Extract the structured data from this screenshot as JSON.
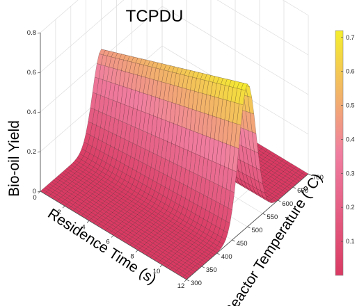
{
  "chart_data": {
    "type": "surface3d",
    "title": "TCPDU",
    "xlabel": "Residence Time (s)",
    "ylabel": "Reactor Temperature (°C)",
    "zlabel": "Bio-oil Yield",
    "x_ticks": [
      "0",
      "2",
      "4",
      "6",
      "8",
      "10",
      "12"
    ],
    "y_ticks": [
      "300",
      "350",
      "400",
      "450",
      "500",
      "550",
      "600",
      "650",
      "700"
    ],
    "z_ticks": [
      "0",
      "0.2",
      "0.4",
      "0.6",
      "0.8"
    ],
    "colorbar_ticks": [
      "0.1",
      "0.2",
      "0.3",
      "0.4",
      "0.5",
      "0.6",
      "0.7"
    ],
    "xlim": [
      0,
      12
    ],
    "ylim": [
      300,
      700
    ],
    "zlim": [
      0,
      0.8
    ],
    "clim": [
      0,
      0.72
    ],
    "grid": true,
    "colormap": {
      "low": "#d93a63",
      "mid": "#f07ea0",
      "high": "#f5ee2c"
    },
    "surface": {
      "peak_yield": 0.72,
      "peak_temperature": 500,
      "ridge_low_time_yield": 0.45,
      "ridge_high_time_yield": 0.72,
      "ridge_width_temperature": 40
    }
  }
}
